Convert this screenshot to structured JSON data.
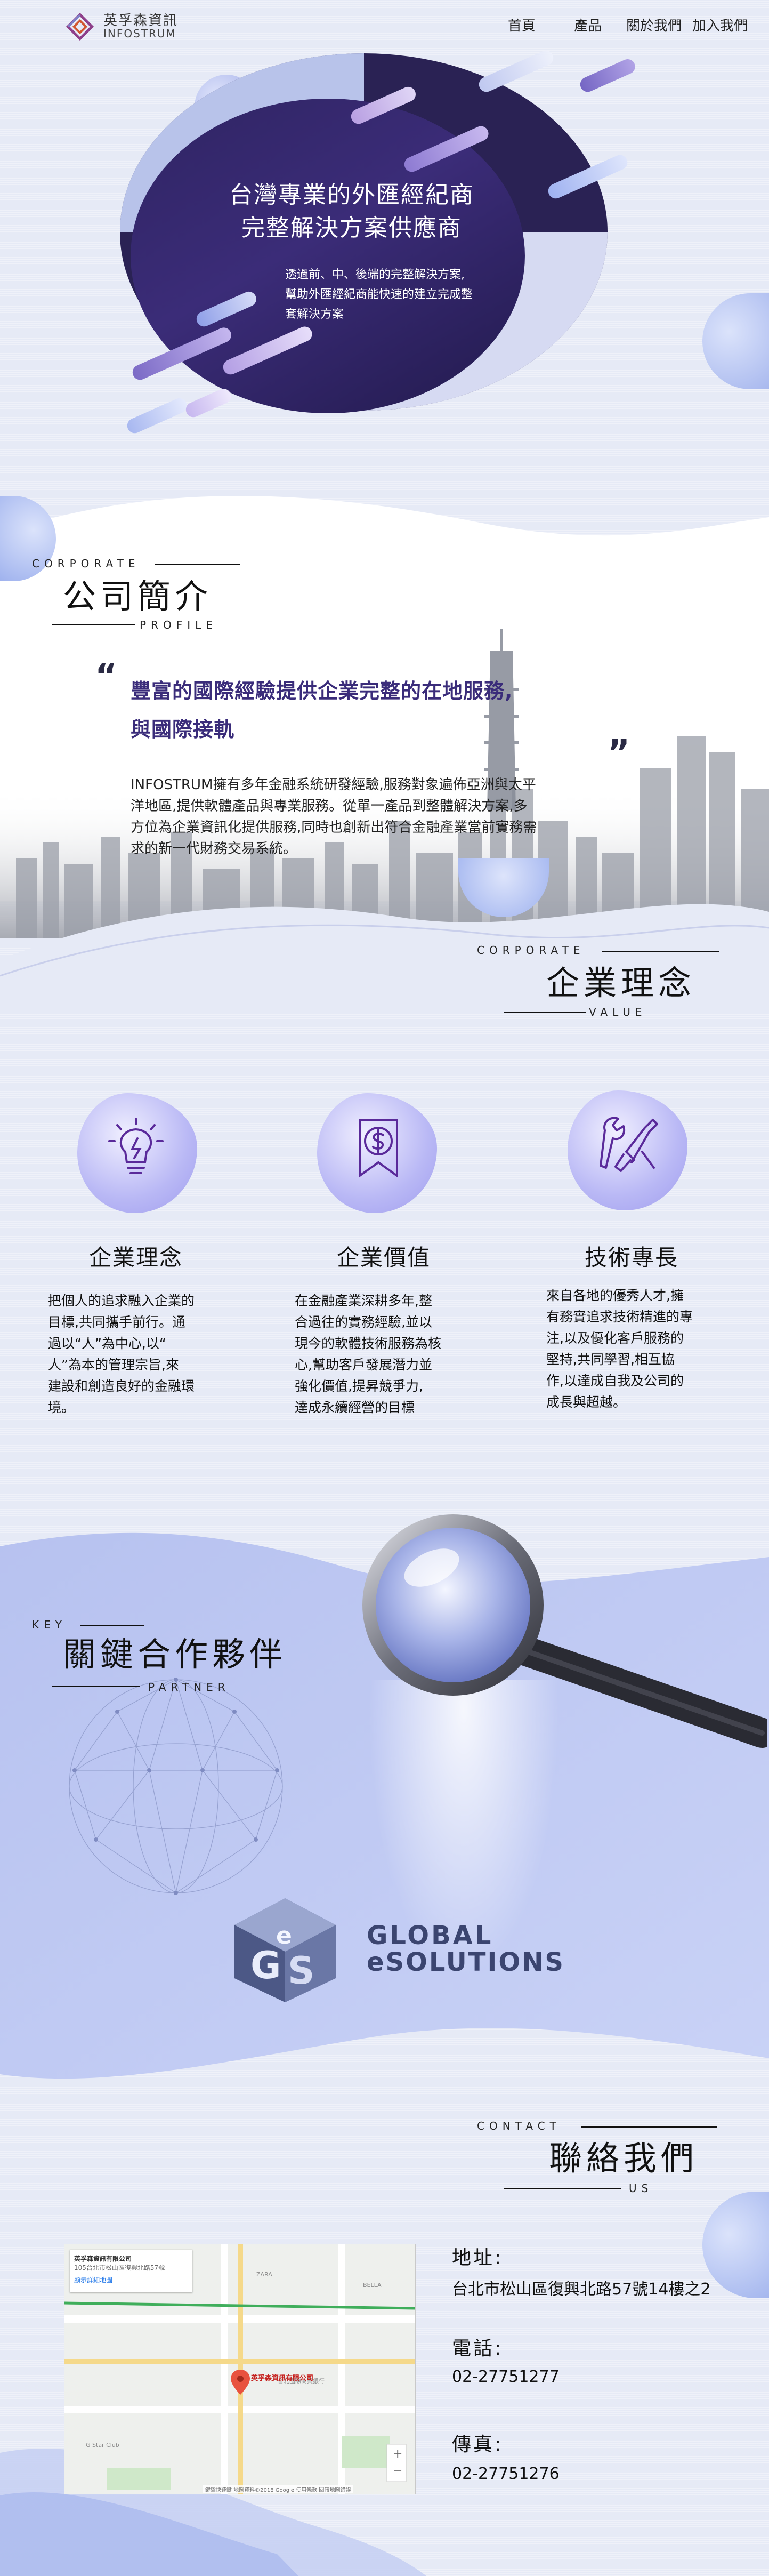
{
  "brand": {
    "name_cn": "英孚森資訊",
    "name_en": "INFOSTRUM"
  },
  "nav": {
    "items": [
      {
        "label": "首頁"
      },
      {
        "label": "產品"
      },
      {
        "label": "關於我們"
      },
      {
        "label": "加入我們"
      }
    ]
  },
  "hero": {
    "title_line1": "台灣專業的外匯經紀商",
    "title_line2": "完整解決方案供應商",
    "sub_line1": "透過前、中、後端的完整解決方案,",
    "sub_line2": "幫助外匯經紀商能快速的建立完成整",
    "sub_line3": "套解決方案"
  },
  "profile": {
    "label_top": "CORPORATE",
    "title": "公司簡介",
    "label_bottom": "PROFILE",
    "quote_open": "“",
    "quote_close": "”",
    "headline_1": "豐富的國際經驗提供企業完整的在地服務,",
    "headline_2": "與國際接軌",
    "body_1": "INFOSTRUM擁有多年金融系統研發經驗,服務對象遍佈亞洲與太平",
    "body_2": "洋地區,提供軟體產品與專業服務。從單一產品到整體解決方案,多",
    "body_3": "方位為企業資訊化提供服務,同時也創新出符合金融產業當前實務需",
    "body_4": "求的新一代財務交易系統。"
  },
  "value": {
    "label_top": "CORPORATE",
    "title": "企業理念",
    "label_bottom": "VALUE",
    "cards": [
      {
        "icon": "lightbulb-icon",
        "title": "企業理念",
        "lines": [
          "把個人的追求融入企業的",
          "目標,共同攜手前行。通",
          "過以“人”為中心,以“",
          "人”為本的管理宗旨,來",
          "建設和創造良好的金融環",
          "境。"
        ]
      },
      {
        "icon": "dollar-badge-icon",
        "title": "企業價值",
        "lines": [
          "在金融產業深耕多年,整",
          "合過往的實務經驗,並以",
          "現今的軟體技術服務為核",
          "心,幫助客戶發展潛力並",
          "強化價值,提昇競爭力,",
          "達成永續經營的目標"
        ]
      },
      {
        "icon": "tools-icon",
        "title": "技術專長",
        "lines": [
          "來自各地的優秀人才,擁",
          "有務實追求技術精進的專",
          "注,以及優化客戶服務的",
          "堅持,共同學習,相互協",
          "作,以達成自我及公司的",
          "成長與超越。"
        ]
      }
    ]
  },
  "partner": {
    "label_top": "KEY",
    "title": "關鍵合作夥伴",
    "label_bottom": "PARTNER",
    "logo_text_1": "GLOBAL",
    "logo_text_2": "eSOLUTIONS"
  },
  "contact": {
    "label_top": "CONTACT",
    "title": "聯絡我們",
    "label_bottom": "US",
    "address_label": "地址:",
    "address": "台北市松山區復興北路57號14樓之2",
    "phone_label": "電話:",
    "phone": "02-27751277",
    "fax_label": "傳真:",
    "fax": "02-27751276",
    "map_card_title": "英孚森資訊有限公司",
    "map_card_addr": "105台北市松山區復興北路57號",
    "map_link": "顯示詳細地圖",
    "map_pin_label": "英孚森資訊有限公司",
    "map_footer": "鍵盤快速鍵 地圖資料©2018 Google 使用條款 回報地圖錯誤"
  },
  "colors": {
    "accent_purple": "#3a2c7a",
    "hero_dark": "#2a2254",
    "hero_light": "#b8c3ea",
    "bg": "#e6eaf6"
  }
}
